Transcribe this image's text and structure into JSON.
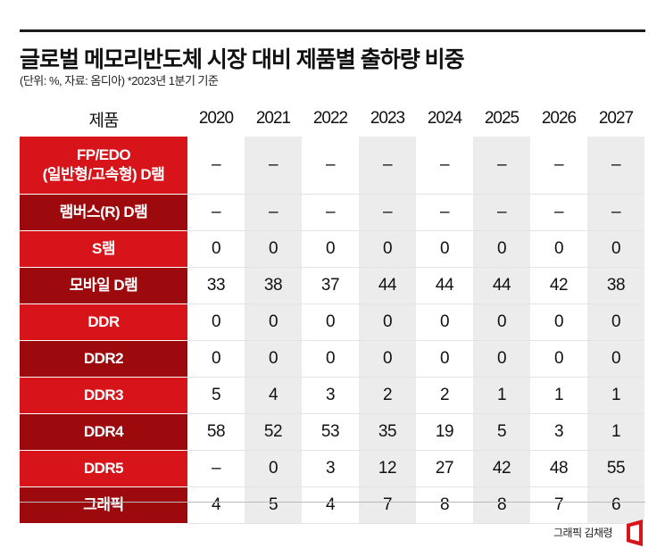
{
  "title": "글로벌 메모리반도체 시장 대비 제품별 출하량 비중",
  "subtitle": "(단위: %, 자료: 옴디아)  *2023년 1분기 기준",
  "credit": "그래픽 김채령",
  "colors": {
    "red": "#d7141a",
    "dark_red": "#9c0a0e",
    "alt_column": "#ececec"
  },
  "chart_data": {
    "type": "table",
    "header_label": "제품",
    "columns": [
      "2020",
      "2021",
      "2022",
      "2023",
      "2024",
      "2025",
      "2026",
      "2027"
    ],
    "rows": [
      {
        "label": "FP/EDO\n(일반형/고속형) D램",
        "values": [
          "-",
          "-",
          "-",
          "-",
          "-",
          "-",
          "-",
          "-"
        ]
      },
      {
        "label": "램버스(R) D램",
        "values": [
          "-",
          "-",
          "-",
          "-",
          "-",
          "-",
          "-",
          "-"
        ]
      },
      {
        "label": "S램",
        "values": [
          "0",
          "0",
          "0",
          "0",
          "0",
          "0",
          "0",
          "0"
        ]
      },
      {
        "label": "모바일 D램",
        "values": [
          "33",
          "38",
          "37",
          "44",
          "44",
          "44",
          "42",
          "38"
        ]
      },
      {
        "label": "DDR",
        "values": [
          "0",
          "0",
          "0",
          "0",
          "0",
          "0",
          "0",
          "0"
        ]
      },
      {
        "label": "DDR2",
        "values": [
          "0",
          "0",
          "0",
          "0",
          "0",
          "0",
          "0",
          "0"
        ]
      },
      {
        "label": "DDR3",
        "values": [
          "5",
          "4",
          "3",
          "2",
          "2",
          "1",
          "1",
          "1"
        ]
      },
      {
        "label": "DDR4",
        "values": [
          "58",
          "52",
          "53",
          "35",
          "19",
          "5",
          "3",
          "1"
        ]
      },
      {
        "label": "DDR5",
        "values": [
          "-",
          "0",
          "3",
          "12",
          "27",
          "42",
          "48",
          "55"
        ]
      },
      {
        "label": "그래픽",
        "values": [
          "4",
          "5",
          "4",
          "7",
          "8",
          "8",
          "7",
          "6"
        ]
      }
    ]
  }
}
